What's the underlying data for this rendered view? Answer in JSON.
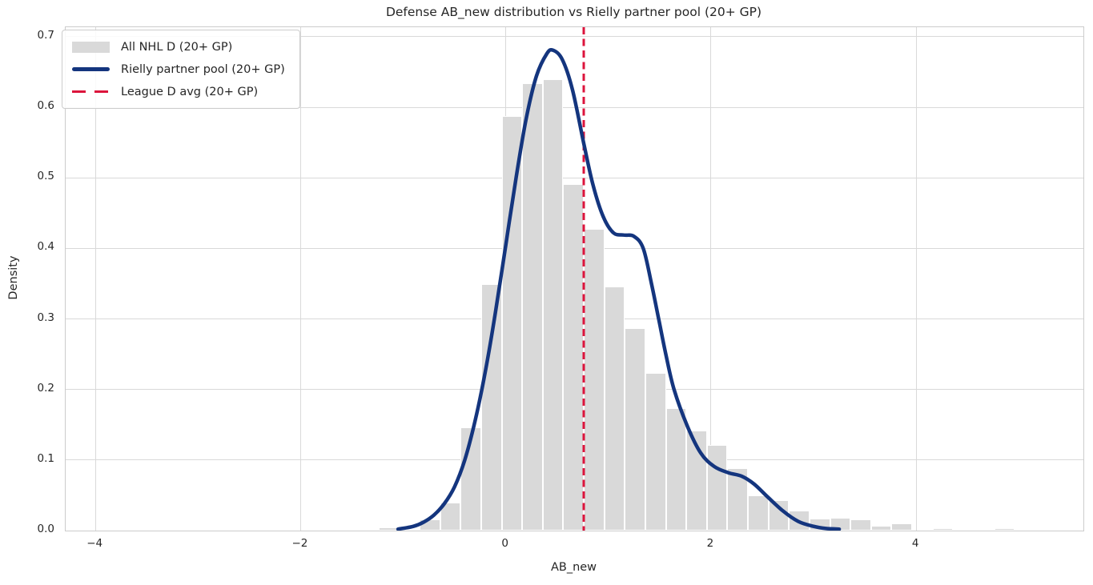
{
  "chart_data": {
    "type": "bar",
    "subtype": "histogram_with_kde_and_vline",
    "title": "Defense AB_new distribution vs Rielly partner pool (20+ GP)",
    "xlabel": "AB_new",
    "ylabel": "Density",
    "xlim": [
      -4.29,
      5.63
    ],
    "ylim": [
      0,
      0.7136
    ],
    "xticks": [
      -4,
      -2,
      0,
      2,
      4
    ],
    "xtick_labels": [
      "−4",
      "−2",
      "0",
      "2",
      "4"
    ],
    "yticks": [
      0.0,
      0.1,
      0.2,
      0.3,
      0.4,
      0.5,
      0.6,
      0.7
    ],
    "ytick_labels": [
      "0.0",
      "0.1",
      "0.2",
      "0.3",
      "0.4",
      "0.5",
      "0.6",
      "0.7"
    ],
    "grid": true,
    "legend_position": "upper-left",
    "histogram": {
      "name": "All NHL D (20+ GP)",
      "color": "#d9d9d9",
      "edge_color": "#ffffff",
      "bin_start": -1.24,
      "bin_width": 0.2,
      "densities": [
        0.004,
        0,
        0.016,
        0.04,
        0.146,
        0.349,
        0.588,
        0.634,
        0.64,
        0.491,
        0.428,
        0.346,
        0.287,
        0.224,
        0.174,
        0.142,
        0.121,
        0.089,
        0.05,
        0.043,
        0.028,
        0.017,
        0.018,
        0.016,
        0.007,
        0.01,
        0,
        0.0035,
        0,
        0,
        0.0035
      ]
    },
    "kde": {
      "name": "Rielly partner pool (20+ GP)",
      "color": "#14357e",
      "line_width": 4.5,
      "x": [
        -1.05,
        -0.9,
        -0.8,
        -0.7,
        -0.6,
        -0.5,
        -0.4,
        -0.3,
        -0.2,
        -0.1,
        0.0,
        0.1,
        0.2,
        0.3,
        0.4,
        0.46,
        0.55,
        0.65,
        0.76,
        0.85,
        0.95,
        1.05,
        1.15,
        1.25,
        1.34,
        1.42,
        1.49,
        1.56,
        1.64,
        1.77,
        1.9,
        2.03,
        2.17,
        2.3,
        2.42,
        2.55,
        2.7,
        2.85,
        3.0,
        3.12,
        3.25
      ],
      "y": [
        0.002,
        0.006,
        0.012,
        0.022,
        0.038,
        0.062,
        0.1,
        0.155,
        0.225,
        0.31,
        0.405,
        0.5,
        0.585,
        0.645,
        0.676,
        0.681,
        0.668,
        0.625,
        0.549,
        0.49,
        0.445,
        0.422,
        0.419,
        0.417,
        0.4,
        0.35,
        0.3,
        0.25,
        0.2,
        0.148,
        0.11,
        0.091,
        0.082,
        0.077,
        0.066,
        0.048,
        0.028,
        0.013,
        0.006,
        0.003,
        0.002
      ]
    },
    "vline": {
      "name": "League D avg (20+ GP)",
      "color": "#dc143c",
      "x": 0.76,
      "style": "dashed",
      "line_width": 3
    },
    "legend_entries": [
      {
        "label": "All NHL D (20+ GP)",
        "swatch": "patch",
        "color": "#d9d9d9"
      },
      {
        "label": "Rielly partner pool (20+ GP)",
        "swatch": "line",
        "color": "#14357e"
      },
      {
        "label": "League D avg (20+ GP)",
        "swatch": "dashed",
        "color": "#dc143c"
      }
    ],
    "style": {
      "background": "#ffffff",
      "grid_color": "#d9d9d9",
      "spine_color": "#cccccc",
      "text_color": "#262626"
    }
  }
}
